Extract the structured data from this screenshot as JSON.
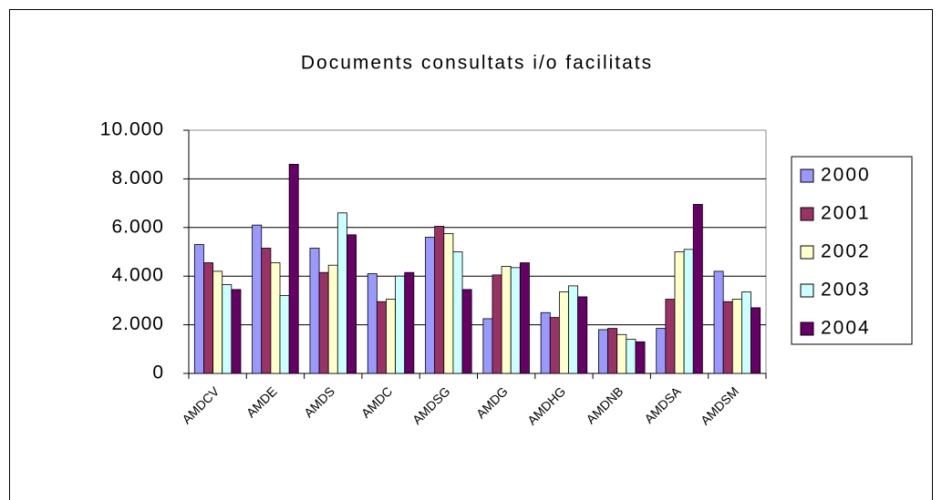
{
  "chart_data": {
    "type": "bar",
    "title": "Documents consultats i/o facilitats",
    "categories": [
      "AMDCV",
      "AMDE",
      "AMDS",
      "AMDC",
      "AMDSG",
      "AMDG",
      "AMDHG",
      "AMDNB",
      "AMDSA",
      "AMDSM"
    ],
    "series": [
      {
        "name": "2000",
        "color": "#9999ff",
        "values": [
          5300,
          6100,
          5150,
          4100,
          5600,
          2250,
          2500,
          1800,
          1850,
          4200
        ]
      },
      {
        "name": "2001",
        "color": "#993366",
        "values": [
          4550,
          5150,
          4150,
          2950,
          6050,
          4050,
          2300,
          1850,
          3050,
          2950
        ]
      },
      {
        "name": "2002",
        "color": "#ffffcc",
        "values": [
          4200,
          4550,
          4450,
          3050,
          5750,
          4400,
          3350,
          1600,
          5000,
          3050
        ]
      },
      {
        "name": "2003",
        "color": "#ccffff",
        "values": [
          3650,
          3200,
          6600,
          4000,
          5000,
          4350,
          3600,
          1400,
          5100,
          3350
        ]
      },
      {
        "name": "2004",
        "color": "#660066",
        "values": [
          3450,
          8600,
          5700,
          4150,
          3450,
          4550,
          3150,
          1300,
          6950,
          2700
        ]
      }
    ],
    "ylim": [
      0,
      10000
    ],
    "yticks": [
      0,
      {
        "value": 2000,
        "label": "2.000"
      },
      {
        "value": 4000,
        "label": "4.000"
      },
      {
        "value": 6000,
        "label": "6.000"
      },
      {
        "value": 8000,
        "label": "8.000"
      },
      {
        "value": 10000,
        "label": "10.000"
      }
    ],
    "grid": true,
    "legend": "right"
  }
}
